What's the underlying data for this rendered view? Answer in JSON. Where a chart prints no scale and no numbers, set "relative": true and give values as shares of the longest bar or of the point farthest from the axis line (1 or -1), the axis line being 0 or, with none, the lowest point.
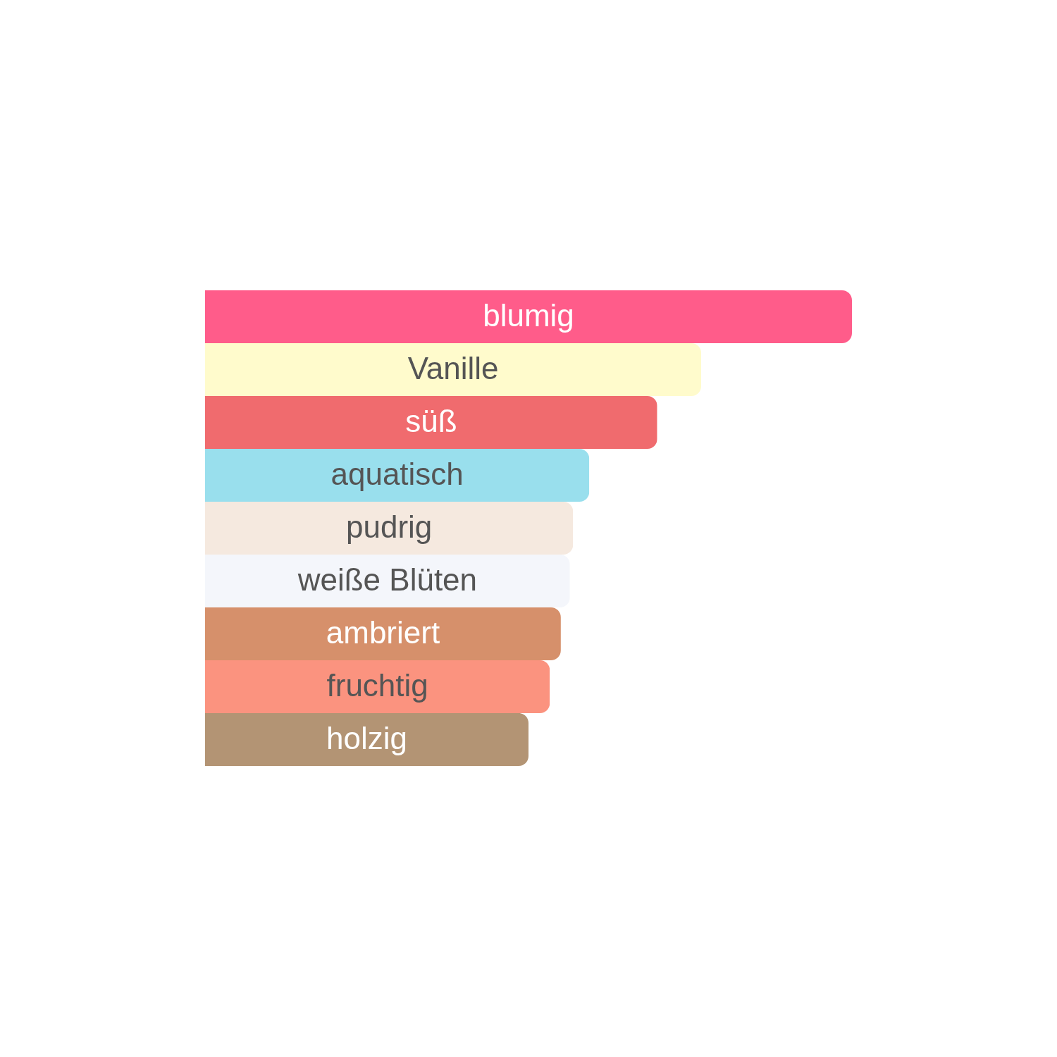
{
  "chart_data": {
    "type": "bar",
    "orientation": "horizontal",
    "relative": true,
    "categories": [
      "blumig",
      "Vanille",
      "süß",
      "aquatisch",
      "pudrig",
      "weiße Blüten",
      "ambriert",
      "fruchtig",
      "holzig"
    ],
    "values": [
      1,
      0.767,
      0.699,
      0.594,
      0.569,
      0.564,
      0.55,
      0.533,
      0.5
    ],
    "colors": [
      "#ff5c8a",
      "#fffbcc",
      "#f06b6e",
      "#99dfed",
      "#f5e9df",
      "#f4f6fb",
      "#d6906b",
      "#fb937f",
      "#b39474"
    ]
  }
}
